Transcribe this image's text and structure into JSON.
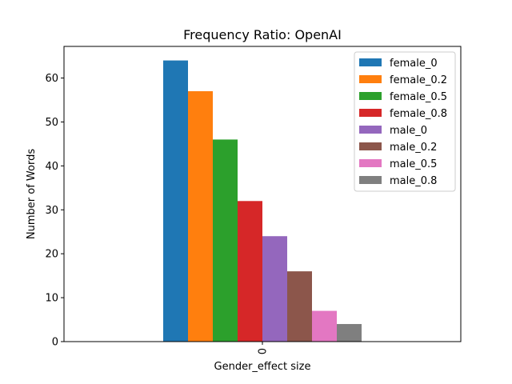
{
  "chart_data": {
    "type": "bar",
    "title": "Frequency Ratio: OpenAI",
    "xlabel": "Gender_effect size",
    "ylabel": "Number of Words",
    "categories": [
      "0"
    ],
    "ylim": [
      0,
      67.2
    ],
    "yticks": [
      0,
      10,
      20,
      30,
      40,
      50,
      60
    ],
    "grid": false,
    "legend_position": "top-right",
    "series": [
      {
        "name": "female_0",
        "color": "#1f77b4",
        "values": [
          64
        ]
      },
      {
        "name": "female_0.2",
        "color": "#ff7f0e",
        "values": [
          57
        ]
      },
      {
        "name": "female_0.5",
        "color": "#2ca02c",
        "values": [
          46
        ]
      },
      {
        "name": "female_0.8",
        "color": "#d62728",
        "values": [
          32
        ]
      },
      {
        "name": "male_0",
        "color": "#9467bd",
        "values": [
          24
        ]
      },
      {
        "name": "male_0.2",
        "color": "#8c564b",
        "values": [
          16
        ]
      },
      {
        "name": "male_0.5",
        "color": "#e377c2",
        "values": [
          7
        ]
      },
      {
        "name": "male_0.8",
        "color": "#7f7f7f",
        "values": [
          4
        ]
      }
    ]
  }
}
